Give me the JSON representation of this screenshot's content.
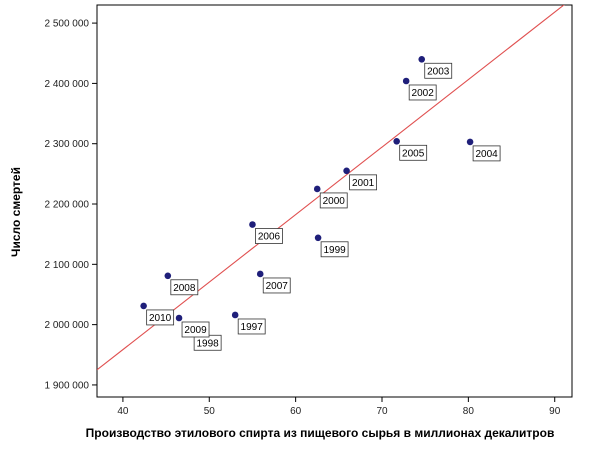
{
  "chart_data": {
    "type": "scatter",
    "xlabel": "Производство этилового спирта из пищевого сырья в миллионах декалитров",
    "ylabel": "Число смертей",
    "xlim": [
      37,
      92
    ],
    "ylim": [
      1880000,
      2530000
    ],
    "x_ticks": [
      40,
      50,
      60,
      70,
      80,
      90
    ],
    "y_ticks": [
      1900000,
      2000000,
      2100000,
      2200000,
      2300000,
      2400000,
      2500000
    ],
    "y_tick_labels": [
      "1 900 000",
      "2 000 000",
      "2 100 000",
      "2 200 000",
      "2 300 000",
      "2 400 000",
      "2 500 000"
    ],
    "x_tick_labels": [
      "40",
      "50",
      "60",
      "70",
      "80",
      "90"
    ],
    "grid": false,
    "series": [
      {
        "points": [
          {
            "x": 47.9,
            "y": 1989000,
            "label": "1998"
          },
          {
            "x": 53.0,
            "y": 2016000,
            "label": "1997"
          },
          {
            "x": 46.5,
            "y": 2011000,
            "label": "2009"
          },
          {
            "x": 42.4,
            "y": 2031000,
            "label": "2010"
          },
          {
            "x": 45.2,
            "y": 2081000,
            "label": "2008"
          },
          {
            "x": 55.9,
            "y": 2084000,
            "label": "2007"
          },
          {
            "x": 55.0,
            "y": 2166000,
            "label": "2006"
          },
          {
            "x": 62.6,
            "y": 2144000,
            "label": "1999"
          },
          {
            "x": 62.5,
            "y": 2225000,
            "label": "2000"
          },
          {
            "x": 65.9,
            "y": 2255000,
            "label": "2001"
          },
          {
            "x": 71.7,
            "y": 2304000,
            "label": "2005"
          },
          {
            "x": 80.2,
            "y": 2303000,
            "label": "2004"
          },
          {
            "x": 72.8,
            "y": 2404000,
            "label": "2002"
          },
          {
            "x": 74.6,
            "y": 2440000,
            "label": "2003"
          }
        ]
      }
    ],
    "fit_line": {
      "x1": 37,
      "y1": 1925000,
      "x2": 91.5,
      "y2": 2535000
    },
    "point_color": "#1f1f7a",
    "fit_line_color": "#e05050"
  }
}
